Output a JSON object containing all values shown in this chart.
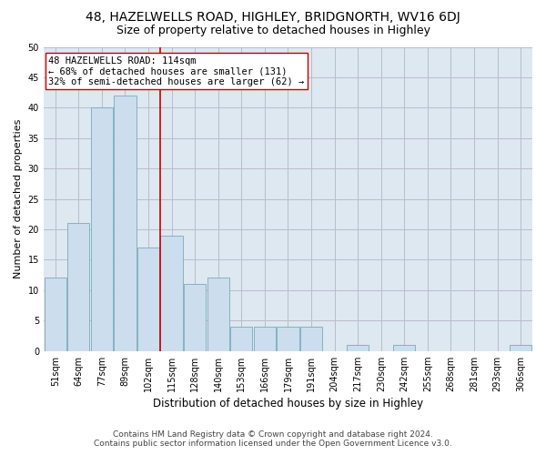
{
  "title1": "48, HAZELWELLS ROAD, HIGHLEY, BRIDGNORTH, WV16 6DJ",
  "title2": "Size of property relative to detached houses in Highley",
  "xlabel": "Distribution of detached houses by size in Highley",
  "ylabel": "Number of detached properties",
  "categories": [
    "51sqm",
    "64sqm",
    "77sqm",
    "89sqm",
    "102sqm",
    "115sqm",
    "128sqm",
    "140sqm",
    "153sqm",
    "166sqm",
    "179sqm",
    "191sqm",
    "204sqm",
    "217sqm",
    "230sqm",
    "242sqm",
    "255sqm",
    "268sqm",
    "281sqm",
    "293sqm",
    "306sqm"
  ],
  "values": [
    12,
    21,
    40,
    42,
    17,
    19,
    11,
    12,
    4,
    4,
    4,
    4,
    0,
    1,
    0,
    1,
    0,
    0,
    0,
    0,
    1
  ],
  "bar_color": "#ccdded",
  "bar_edge_color": "#7aaabb",
  "vline_x": 4.5,
  "vline_color": "#cc0000",
  "annotation_line1": "48 HAZELWELLS ROAD: 114sqm",
  "annotation_line2": "← 68% of detached houses are smaller (131)",
  "annotation_line3": "32% of semi-detached houses are larger (62) →",
  "annotation_box_color": "#ffffff",
  "annotation_box_edge_color": "#cc0000",
  "ylim": [
    0,
    50
  ],
  "yticks": [
    0,
    5,
    10,
    15,
    20,
    25,
    30,
    35,
    40,
    45,
    50
  ],
  "grid_color": "#bbbbcc",
  "bg_color": "#dde8f0",
  "footer1": "Contains HM Land Registry data © Crown copyright and database right 2024.",
  "footer2": "Contains public sector information licensed under the Open Government Licence v3.0.",
  "title1_fontsize": 10,
  "title2_fontsize": 9,
  "xlabel_fontsize": 8.5,
  "ylabel_fontsize": 8,
  "tick_fontsize": 7,
  "annotation_fontsize": 7.5,
  "footer_fontsize": 6.5
}
